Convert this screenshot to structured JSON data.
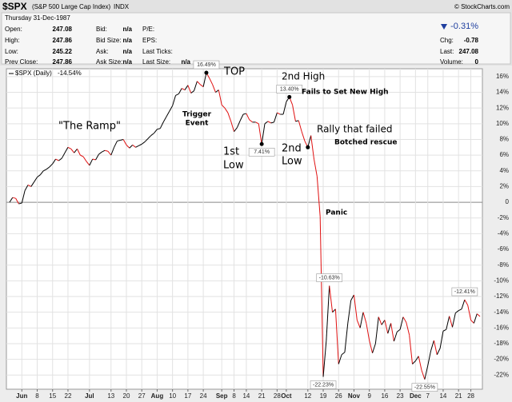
{
  "header": {
    "symbol": "$SPX",
    "name": "(S&P 500 Large Cap Index)",
    "exchange": "INDX",
    "copyright": "© StockCharts.com",
    "date": "Thursday  31-Dec-1987",
    "quote": [
      {
        "label": "Open:",
        "value": "247.08"
      },
      {
        "label": "High:",
        "value": "247.86"
      },
      {
        "label": "Low:",
        "value": "245.22"
      },
      {
        "label": "Prev Close:",
        "value": "247.86"
      }
    ],
    "bid_ask": [
      {
        "label": "Bid:",
        "value": "n/a"
      },
      {
        "label": "Bid Size:",
        "value": "n/a"
      },
      {
        "label": "Ask:",
        "value": "n/a"
      },
      {
        "label": "Ask Size:",
        "value": "n/a"
      }
    ],
    "other": [
      {
        "label": "P/E:"
      },
      {
        "label": "EPS:"
      },
      {
        "label": "Last Ticks:"
      },
      {
        "label": "Last Size:",
        "value": "n/a"
      }
    ],
    "change_pct": "-0.31%",
    "summary": [
      {
        "label": "Chg:",
        "value": "-0.78"
      },
      {
        "label": "Last:",
        "value": "247.08"
      },
      {
        "label": "Volume:",
        "value": "0"
      }
    ]
  },
  "chart_data": {
    "type": "line",
    "legend_value": "-14.54%",
    "annotations": [
      "\"The Ramp\"",
      "TOP",
      "Trigger",
      "Event",
      "1st",
      "Low",
      "2nd High",
      "Fails to Set New High",
      "2nd",
      "Low",
      "Rally that failed",
      "Botched rescue",
      "Panic"
    ],
    "categories": [
      null,
      null,
      null,
      null,
      "Jun",
      null,
      null,
      null,
      null,
      "8",
      null,
      null,
      null,
      null,
      "15",
      null,
      null,
      null,
      null,
      "22",
      null,
      null,
      null,
      null,
      null,
      null,
      "Jul",
      null,
      null,
      null,
      null,
      null,
      null,
      "13",
      null,
      null,
      null,
      null,
      "20",
      null,
      null,
      null,
      null,
      "27",
      null,
      null,
      null,
      null,
      "Aug",
      null,
      null,
      null,
      null,
      "10",
      null,
      null,
      null,
      null,
      "17",
      null,
      null,
      null,
      null,
      "24",
      null,
      null,
      null,
      null,
      null,
      "Sep",
      null,
      null,
      null,
      "8",
      null,
      null,
      null,
      "14",
      null,
      null,
      null,
      null,
      "21",
      null,
      null,
      null,
      null,
      "28",
      null,
      null,
      "Oct",
      null,
      null,
      null,
      null,
      null,
      null,
      "12",
      null,
      null,
      null,
      null,
      "19",
      null,
      null,
      null,
      null,
      "26",
      null,
      null,
      null,
      null,
      "Nov",
      null,
      null,
      null,
      null,
      "9",
      null,
      null,
      null,
      null,
      "16",
      null,
      null,
      null,
      null,
      "23",
      null,
      null,
      null,
      null,
      "Dec",
      null,
      null,
      null,
      "7",
      null,
      null,
      null,
      null,
      "14",
      null,
      null,
      null,
      null,
      "21",
      null,
      null,
      null,
      "28",
      null,
      null,
      null
    ],
    "series": [
      {
        "name": "$SPX (Daily)",
        "color": "#000000",
        "down_color": "#e01010",
        "values": [
          0,
          0.6,
          0.5,
          -0.2,
          -0.1,
          1.5,
          2.2,
          2.0,
          2.6,
          3.2,
          3.5,
          4.0,
          4.2,
          4.5,
          4.9,
          5.5,
          5.3,
          5.6,
          6.3,
          7.0,
          6.8,
          6.3,
          6.8,
          6.0,
          5.8,
          5.2,
          4.7,
          5.5,
          5.4,
          6.1,
          6.4,
          6.6,
          6.5,
          6.0,
          7.0,
          7.8,
          7.9,
          8.0,
          7.3,
          6.9,
          7.3,
          7.0,
          7.2,
          7.4,
          7.7,
          8.1,
          8.5,
          8.8,
          9.3,
          9.4,
          10.2,
          10.9,
          11.6,
          12.3,
          13.6,
          13.8,
          14.5,
          14.3,
          14.9,
          13.9,
          14.2,
          15.4,
          15.0,
          14.7,
          16.49,
          15.8,
          15.0,
          14.0,
          14.3,
          12.4,
          12.0,
          11.4,
          10.3,
          9.0,
          9.5,
          10.4,
          11.2,
          11.3,
          10.5,
          10.2,
          10.2,
          10.0,
          7.41,
          10.0,
          10.3,
          10.1,
          10.2,
          11.4,
          11.2,
          11.2,
          12.8,
          13.4,
          12.4,
          10.3,
          10.4,
          9.0,
          7.8,
          7.0,
          8.5,
          5.5,
          3.3,
          -1.8,
          -22.23,
          -17.6,
          -10.63,
          -14.0,
          -13.6,
          -20.6,
          -19.4,
          -19.1,
          -15.4,
          -12.5,
          -11.8,
          -15.0,
          -16.0,
          -14.0,
          -15.4,
          -17.6,
          -19.2,
          -18.0,
          -14.6,
          -15.6,
          -15.0,
          -16.7,
          -15.4,
          -17.7,
          -16.5,
          -16.2,
          -14.6,
          -15.3,
          -16.9,
          -20.6,
          -20.2,
          -19.6,
          -21.4,
          -22.55,
          -20.8,
          -18.9,
          -17.6,
          -19.4,
          -18.6,
          -16.4,
          -16.2,
          -14.5,
          -15.9,
          -14.1,
          -13.8,
          -13.6,
          -12.41,
          -13.1,
          -15.0,
          -15.4,
          -14.2,
          -14.54
        ],
        "value_labels": [
          null,
          null,
          null,
          null,
          null,
          null,
          null,
          null,
          null,
          null,
          null,
          null,
          null,
          null,
          null,
          null,
          null,
          null,
          null,
          null,
          null,
          null,
          null,
          null,
          null,
          null,
          null,
          null,
          null,
          null,
          null,
          null,
          null,
          null,
          null,
          null,
          null,
          null,
          null,
          null,
          null,
          null,
          null,
          null,
          null,
          null,
          null,
          null,
          null,
          null,
          null,
          null,
          null,
          null,
          null,
          null,
          null,
          null,
          null,
          null,
          null,
          null,
          null,
          null,
          "16.49%",
          null,
          null,
          null,
          null,
          null,
          null,
          null,
          null,
          null,
          null,
          null,
          null,
          null,
          null,
          null,
          null,
          null,
          "7.41%",
          null,
          null,
          null,
          null,
          null,
          null,
          null,
          null,
          "13.40%",
          null,
          null,
          null,
          null,
          null,
          null,
          null,
          null,
          null,
          null,
          "-22.23%",
          null,
          "-10.63%",
          null,
          null,
          null,
          null,
          null,
          null,
          null,
          null,
          null,
          null,
          null,
          null,
          null,
          null,
          null,
          null,
          null,
          null,
          null,
          null,
          null,
          null,
          null,
          null,
          null,
          null,
          null,
          null,
          null,
          null,
          "-22.55%",
          null,
          null,
          null,
          null,
          null,
          null,
          null,
          null,
          null,
          null,
          null,
          null,
          "-12.41%",
          null,
          null,
          null,
          null,
          null
        ]
      }
    ],
    "ylim": [
      -23.6,
      16.8
    ],
    "yticks": [
      {
        "value": 16,
        "label": "16%"
      },
      {
        "value": 14,
        "label": "14%"
      },
      {
        "value": 12,
        "label": "12%"
      },
      {
        "value": 10,
        "label": "10%"
      },
      {
        "value": 8,
        "label": "8%"
      },
      {
        "value": 6,
        "label": "6%"
      },
      {
        "value": 4,
        "label": "4%"
      },
      {
        "value": 2,
        "label": "2%"
      },
      0,
      {
        "value": -2,
        "label": "-2%"
      },
      {
        "value": -4,
        "label": "-4%"
      },
      {
        "value": -6,
        "label": "-6%"
      },
      {
        "value": -8,
        "label": "-8%"
      },
      {
        "value": -10,
        "label": "-10%"
      },
      {
        "value": -12,
        "label": "-12%"
      },
      {
        "value": -14,
        "label": "-14%"
      },
      {
        "value": -16,
        "label": "-16%"
      },
      {
        "value": -18,
        "label": "-18%"
      },
      {
        "value": -20,
        "label": "-20%"
      },
      {
        "value": -22,
        "label": "-22%"
      }
    ],
    "grid": true
  }
}
